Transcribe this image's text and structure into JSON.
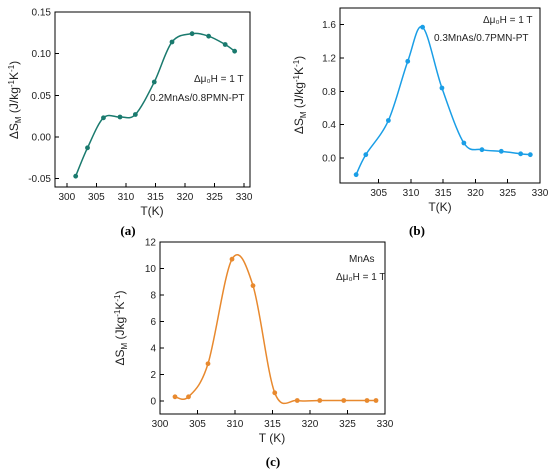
{
  "chart_data": [
    {
      "type": "line",
      "panel_label": "(a)",
      "color": "#1a7a6e",
      "xlabel": "T(K)",
      "ylabel_main": "ΔS",
      "ylabel_sub": "M",
      "ylabel_rest": " (J/kg",
      "ylabel_sup": "-1",
      "ylabel_rest2": "K",
      "ylabel_sup2": "-1",
      "ylabel_end": ")",
      "annotations": [
        "Δμ₀H = 1 T",
        "0.2MnAs/0.8PMN-PT"
      ],
      "xlim": [
        298,
        331
      ],
      "ylim": [
        -0.06,
        0.15
      ],
      "xticks": [
        "300",
        "305",
        "310",
        "315",
        "320",
        "325",
        "330"
      ],
      "yticks": [
        "-0.05",
        "0.00",
        "0.05",
        "0.10",
        "0.15"
      ],
      "x": [
        301.5,
        303.5,
        306.2,
        309.0,
        311.6,
        314.8,
        317.8,
        321.2,
        324.0,
        326.8,
        328.4
      ],
      "y": [
        -0.047,
        -0.013,
        0.023,
        0.024,
        0.027,
        0.066,
        0.114,
        0.124,
        0.121,
        0.111,
        0.103
      ]
    },
    {
      "type": "line",
      "panel_label": "(b)",
      "color": "#1a9ee6",
      "xlabel": "T(K)",
      "ylabel_main": "ΔS",
      "ylabel_sub": "M",
      "ylabel_rest": " (J/kg",
      "ylabel_sup": "-1",
      "ylabel_rest2": "K",
      "ylabel_sup2": "-1",
      "ylabel_end": ")",
      "annotations": [
        "Δμ₀H = 1 T",
        "0.3MnAs/0.7PMN-PT"
      ],
      "xlim": [
        299,
        330
      ],
      "ylim": [
        -0.3,
        1.8
      ],
      "xticks": [
        "305",
        "310",
        "315",
        "320",
        "325",
        "330"
      ],
      "yticks": [
        "0.0",
        "0.4",
        "0.8",
        "1.2",
        "1.6"
      ],
      "x": [
        301.5,
        303.0,
        306.5,
        309.5,
        311.8,
        314.8,
        318.2,
        321.0,
        324.0,
        327.0,
        328.5
      ],
      "y": [
        -0.2,
        0.04,
        0.45,
        1.16,
        1.57,
        0.84,
        0.18,
        0.1,
        0.08,
        0.05,
        0.04
      ]
    },
    {
      "type": "line",
      "panel_label": "(c)",
      "color": "#e8892e",
      "xlabel": "T (K)",
      "ylabel_main": "ΔS",
      "ylabel_sub": "M",
      "ylabel_rest": " (Jkg",
      "ylabel_sup": "-1",
      "ylabel_rest2": "K",
      "ylabel_sup2": "-1",
      "ylabel_end": ")",
      "annotations": [
        "MnAs",
        "Δμ₀H = 1 T"
      ],
      "xlim": [
        300,
        330
      ],
      "ylim": [
        -1,
        12
      ],
      "xticks": [
        "300",
        "305",
        "310",
        "315",
        "320",
        "325",
        "330"
      ],
      "yticks": [
        "0",
        "2",
        "4",
        "6",
        "8",
        "10",
        "12"
      ],
      "x": [
        302.0,
        303.8,
        306.4,
        309.6,
        312.4,
        315.3,
        318.3,
        321.3,
        324.5,
        327.6,
        328.8
      ],
      "y": [
        0.3,
        0.3,
        2.8,
        10.7,
        8.7,
        0.6,
        0.02,
        0.02,
        0.02,
        0.02,
        0.02
      ]
    }
  ]
}
